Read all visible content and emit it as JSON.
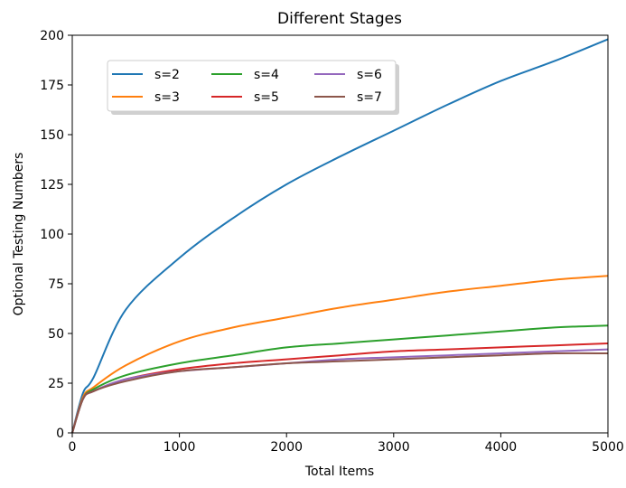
{
  "chart_data": {
    "type": "line",
    "title": "Different Stages",
    "xlabel": "Total Items",
    "ylabel": "Optional Testing Numbers",
    "xlim": [
      0,
      5000
    ],
    "ylim": [
      0,
      200
    ],
    "x_ticks": [
      0,
      1000,
      2000,
      3000,
      4000,
      5000
    ],
    "y_ticks": [
      0,
      25,
      50,
      75,
      100,
      125,
      150,
      175,
      200
    ],
    "grid": false,
    "legend_position": "upper-left",
    "legend_columns": 3,
    "series": [
      {
        "name": "s=2",
        "color": "#1f77b4",
        "x": [
          0,
          100,
          200,
          500,
          1000,
          1500,
          2000,
          2500,
          3000,
          3500,
          4000,
          4500,
          5000
        ],
        "y": [
          0,
          20,
          28,
          62,
          88,
          108,
          125,
          139,
          152,
          165,
          177,
          187,
          198
        ]
      },
      {
        "name": "s=3",
        "color": "#ff7f0e",
        "x": [
          0,
          100,
          200,
          500,
          1000,
          1500,
          2000,
          2500,
          3000,
          3500,
          4000,
          4500,
          5000
        ],
        "y": [
          0,
          18,
          23,
          34,
          46,
          53,
          58,
          63,
          67,
          71,
          74,
          77,
          79
        ]
      },
      {
        "name": "s=4",
        "color": "#2ca02c",
        "x": [
          0,
          100,
          200,
          500,
          1000,
          1500,
          2000,
          2500,
          3000,
          3500,
          4000,
          4500,
          5000
        ],
        "y": [
          0,
          17,
          22,
          29,
          35,
          39,
          43,
          45,
          47,
          49,
          51,
          53,
          54
        ]
      },
      {
        "name": "s=5",
        "color": "#d62728",
        "x": [
          0,
          100,
          200,
          500,
          1000,
          1500,
          2000,
          2500,
          3000,
          3500,
          4000,
          4500,
          5000
        ],
        "y": [
          0,
          17,
          21,
          27,
          32,
          35,
          37,
          39,
          41,
          42,
          43,
          44,
          45
        ]
      },
      {
        "name": "s=6",
        "color": "#9467bd",
        "x": [
          0,
          100,
          200,
          500,
          1000,
          1500,
          2000,
          2500,
          3000,
          3500,
          4000,
          4500,
          5000
        ],
        "y": [
          0,
          17,
          21,
          27,
          31,
          33,
          35,
          37,
          38,
          39,
          40,
          41,
          42
        ]
      },
      {
        "name": "s=7",
        "color": "#8c564b",
        "x": [
          0,
          100,
          200,
          500,
          1000,
          1500,
          2000,
          2500,
          3000,
          3500,
          4000,
          4500,
          5000
        ],
        "y": [
          0,
          17,
          21,
          26,
          31,
          33,
          35,
          36,
          37,
          38,
          39,
          40,
          40
        ]
      }
    ]
  }
}
